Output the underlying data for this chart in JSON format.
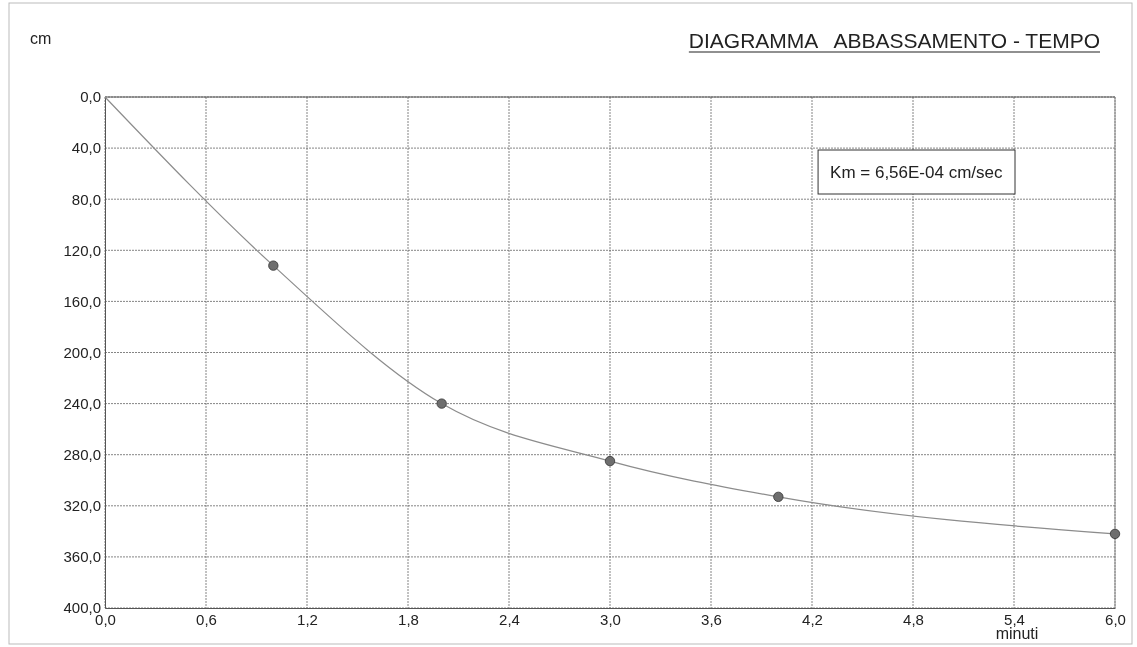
{
  "chart_data": {
    "type": "line",
    "title": "DIAGRAMMA   ABBASSAMENTO - TEMPO",
    "xlabel": "minuti",
    "ylabel": "cm",
    "annotations": [
      "Km = 6,56E-04 cm/sec"
    ],
    "series": [
      {
        "color": "#8c8c8c",
        "marker": "none",
        "x": [
          0,
          1,
          2,
          3,
          4,
          6
        ],
        "values": [
          0,
          132,
          240,
          285,
          313,
          342
        ]
      },
      {
        "type": "scatter",
        "color": "#6e6e6e",
        "marker": "circle",
        "x": [
          1,
          2,
          3,
          4,
          6
        ],
        "values": [
          132,
          240,
          285,
          313,
          342
        ]
      }
    ],
    "xlim": [
      0,
      6
    ],
    "ylim": [
      400,
      0
    ],
    "xticks": [
      {
        "value": 0,
        "label": "0,0"
      },
      {
        "value": 0.6,
        "label": "0,6"
      },
      {
        "value": 1.2,
        "label": "1,2"
      },
      {
        "value": 1.8,
        "label": "1,8"
      },
      {
        "value": 2.4,
        "label": "2,4"
      },
      {
        "value": 3,
        "label": "3,0"
      },
      {
        "value": 3.6,
        "label": "3,6"
      },
      {
        "value": 4.2,
        "label": "4,2"
      },
      {
        "value": 4.8,
        "label": "4,8"
      },
      {
        "value": 5.4,
        "label": "5,4"
      },
      {
        "value": 6,
        "label": "6,0"
      }
    ],
    "yticks": [
      {
        "value": 0,
        "label": "0,0"
      },
      {
        "value": 40,
        "label": "40,0"
      },
      {
        "value": 80,
        "label": "80,0"
      },
      {
        "value": 120,
        "label": "120,0"
      },
      {
        "value": 160,
        "label": "160,0"
      },
      {
        "value": 200,
        "label": "200,0"
      },
      {
        "value": 240,
        "label": "240,0"
      },
      {
        "value": 280,
        "label": "280,0"
      },
      {
        "value": 320,
        "label": "320,0"
      },
      {
        "value": 360,
        "label": "360,0"
      },
      {
        "value": 400,
        "label": "400,0"
      }
    ],
    "grid": true
  }
}
